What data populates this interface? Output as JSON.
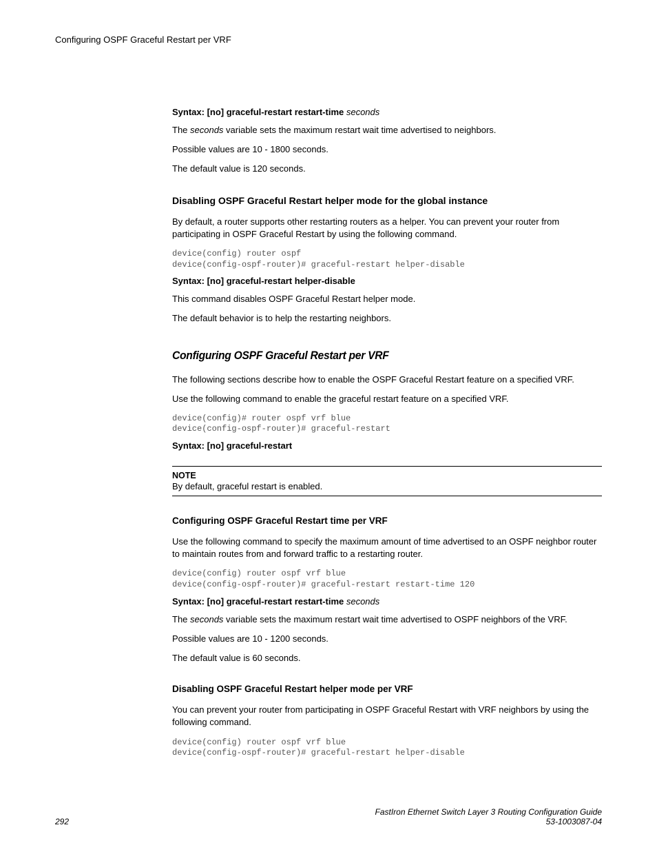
{
  "header": {
    "topic": "Configuring OSPF Graceful Restart per VRF"
  },
  "section_top": {
    "syntax_prefix": "Syntax: [no] graceful-restart restart-time",
    "syntax_var": " seconds",
    "p1a": "The ",
    "p1b": "seconds",
    "p1c": " variable sets the maximum restart wait time advertised to neighbors.",
    "p2": "Possible values are 10 - 1800 seconds.",
    "p3": "The default value is 120 seconds."
  },
  "section_disable_global": {
    "heading": "Disabling OSPF Graceful Restart helper mode for the global instance",
    "p1": "By default, a router supports other restarting routers as a helper. You can prevent your router from participating in OSPF Graceful Restart by using the following command.",
    "code": "device(config) router ospf\ndevice(config-ospf-router)# graceful-restart helper-disable",
    "syntax": "Syntax: [no] graceful-restart helper-disable",
    "p2": "This command disables OSPF Graceful Restart helper mode.",
    "p3": "The default behavior is to help the restarting neighbors."
  },
  "section_vrf": {
    "heading": "Configuring OSPF Graceful Restart per VRF",
    "p1": "The following sections describe how to enable the OSPF Graceful Restart feature on a specified VRF.",
    "p2": "Use the following command to enable the graceful restart feature on a specified VRF.",
    "code": "device(config)# router ospf vrf blue\ndevice(config-ospf-router)# graceful-restart",
    "syntax": "Syntax: [no] graceful-restart",
    "note_label": "NOTE",
    "note_text": "By default, graceful restart is enabled."
  },
  "section_vrf_time": {
    "heading": "Configuring OSPF Graceful Restart time per VRF",
    "p1": "Use the following command to specify the maximum amount of time advertised to an OSPF neighbor router to maintain routes from and forward traffic to a restarting router.",
    "code": "device(config) router ospf vrf blue\ndevice(config-ospf-router)# graceful-restart restart-time 120",
    "syntax_prefix": "Syntax: [no] graceful-restart restart-time",
    "syntax_var": " seconds",
    "p2a": "The ",
    "p2b": "seconds",
    "p2c": " variable sets the maximum restart wait time advertised to OSPF neighbors of the VRF.",
    "p3": "Possible values are 10 - 1200 seconds.",
    "p4": "The default value is 60 seconds."
  },
  "section_vrf_disable": {
    "heading": "Disabling OSPF Graceful Restart helper mode per VRF",
    "p1": "You can prevent your router from participating in OSPF Graceful Restart with VRF neighbors by using the following command.",
    "code": "device(config) router ospf vrf blue\ndevice(config-ospf-router)# graceful-restart helper-disable"
  },
  "footer": {
    "page_number": "292",
    "doc_title": "FastIron Ethernet Switch Layer 3 Routing Configuration Guide",
    "doc_id": "53-1003087-04"
  }
}
